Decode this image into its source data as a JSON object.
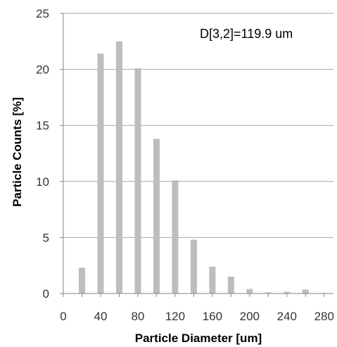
{
  "chart_data": {
    "type": "bar",
    "title": "",
    "xlabel": "Particle Diameter [um]",
    "ylabel": "Particle Counts [%]",
    "annotation": "D[3,2]=119.9 um",
    "ylim": [
      0,
      25
    ],
    "xlim": [
      0,
      290
    ],
    "y_ticks": [
      0,
      5,
      10,
      15,
      20,
      25
    ],
    "x_ticks": [
      0,
      40,
      80,
      120,
      160,
      200,
      240,
      280
    ],
    "grid": "horizontal",
    "legend": "none",
    "bar_color": "#bdbdbd",
    "x": [
      20,
      40,
      60,
      80,
      100,
      120,
      140,
      160,
      180,
      200,
      220,
      240,
      260,
      280
    ],
    "values": [
      2.3,
      21.4,
      22.5,
      20.1,
      13.8,
      10.1,
      4.8,
      2.4,
      1.5,
      0.4,
      0.1,
      0.15,
      0.35,
      0.05
    ]
  }
}
